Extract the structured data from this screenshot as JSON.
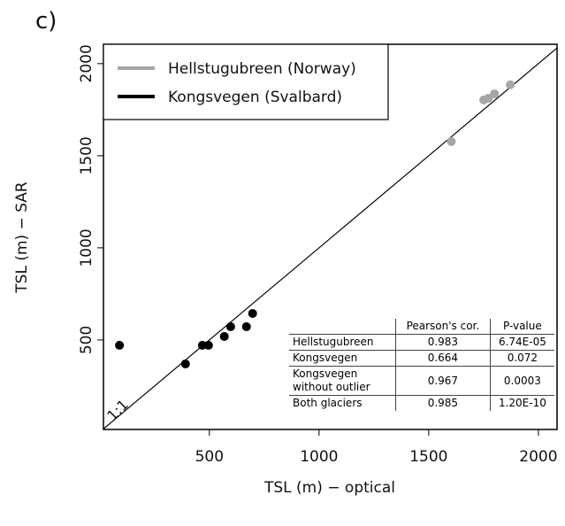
{
  "chart_data": {
    "type": "scatter",
    "panel_label": "c)",
    "annotation": "1:1",
    "xlabel": "TSL (m) − optical",
    "ylabel": "TSL (m) − SAR",
    "xlim": [
      17,
      2085
    ],
    "ylim": [
      14,
      2105
    ],
    "xticks": [
      500,
      1000,
      1500,
      2000
    ],
    "yticks": [
      500,
      1000,
      1500,
      2000
    ],
    "legend": "top-left",
    "series": [
      {
        "name": "Hellstugubreen (Norway)",
        "color": "#a6a6a6",
        "x": [
          1603,
          1751,
          1772,
          1800,
          1872
        ],
        "values": [
          1577,
          1803,
          1812,
          1836,
          1885
        ]
      },
      {
        "name": "Kongsvegen (Svalbard)",
        "color": "#000000",
        "x": [
          90,
          391,
          468,
          496,
          568,
          597,
          669,
          697
        ],
        "values": [
          471,
          370,
          471,
          471,
          519,
          572,
          572,
          644
        ]
      }
    ]
  },
  "table": {
    "header": [
      "",
      "Pearson's cor.",
      "P-value"
    ],
    "rows": [
      [
        "Hellstugubreen",
        "0.983",
        "6.74E-05"
      ],
      [
        "Kongsvegen",
        "0.664",
        "0.072"
      ],
      [
        "Kongsvegen without outlier",
        "0.967",
        "0.0003"
      ],
      [
        "Both glaciers",
        "0.985",
        "1.20E-10"
      ]
    ]
  }
}
